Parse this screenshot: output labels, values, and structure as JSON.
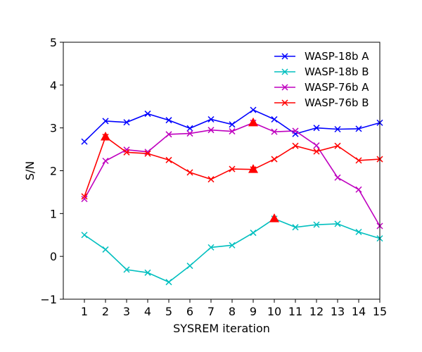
{
  "chart_data": {
    "type": "line",
    "xlabel": "SYSREM iteration",
    "ylabel": "S/N",
    "x": [
      1,
      2,
      3,
      4,
      5,
      6,
      7,
      8,
      9,
      10,
      11,
      12,
      13,
      14,
      15
    ],
    "xlim": [
      0,
      15
    ],
    "ylim": [
      -1,
      5
    ],
    "xticks": [
      1,
      2,
      3,
      4,
      5,
      6,
      7,
      8,
      9,
      10,
      11,
      12,
      13,
      14,
      15
    ],
    "yticks": [
      -1,
      0,
      1,
      2,
      3,
      4,
      5
    ],
    "grid": false,
    "legend_position": "top-right",
    "series": [
      {
        "name": "WASP-18b A",
        "color": "#0000ff",
        "marker": "x",
        "values": [
          2.68,
          3.16,
          3.13,
          3.33,
          3.18,
          2.99,
          3.2,
          3.08,
          3.42,
          3.2,
          2.86,
          3.0,
          2.97,
          2.98,
          3.12
        ],
        "highlight_x": []
      },
      {
        "name": "WASP-18b B",
        "color": "#00bfbf",
        "marker": "x",
        "values": [
          0.5,
          0.16,
          -0.31,
          -0.38,
          -0.6,
          -0.22,
          0.21,
          0.26,
          0.55,
          0.88,
          0.68,
          0.74,
          0.76,
          0.57,
          0.42
        ],
        "highlight_x": [
          10
        ]
      },
      {
        "name": "WASP-76b A",
        "color": "#bf00bf",
        "marker": "x",
        "values": [
          1.34,
          2.23,
          2.49,
          2.44,
          2.85,
          2.87,
          2.95,
          2.92,
          3.12,
          2.91,
          2.93,
          2.59,
          1.84,
          1.56,
          0.71
        ],
        "highlight_x": [
          9
        ]
      },
      {
        "name": "WASP-76b B",
        "color": "#ff0000",
        "marker": "x",
        "values": [
          1.4,
          2.79,
          2.43,
          2.4,
          2.25,
          1.96,
          1.8,
          2.04,
          2.03,
          2.27,
          2.58,
          2.45,
          2.58,
          2.24,
          2.27
        ],
        "highlight_x": [
          2,
          9
        ]
      }
    ],
    "highlight_marker": {
      "shape": "triangle",
      "color": "#ff0000"
    }
  }
}
